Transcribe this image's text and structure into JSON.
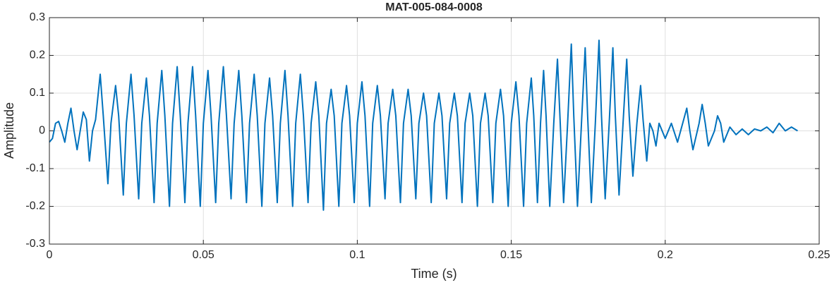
{
  "chart_data": {
    "type": "line",
    "title": "MAT-005-084-0008",
    "x_label": "Time (s)",
    "y_label": "Amplitude",
    "xlim": [
      0,
      0.25
    ],
    "xticks": [
      0,
      0.05,
      0.1,
      0.15,
      0.2,
      0.25
    ],
    "ylim": [
      -0.3,
      0.3
    ],
    "yticks": [
      -0.3,
      -0.2,
      -0.1,
      0,
      0.1,
      0.2,
      0.3
    ],
    "grid": true,
    "color": "#0072bd",
    "x": [
      0,
      0.001,
      0.002,
      0.003,
      0.004,
      0.005,
      0.006,
      0.007,
      0.008,
      0.009,
      0.01,
      0.011,
      0.012,
      0.013,
      0.014,
      0.015,
      0.0165,
      0.0175,
      0.019,
      0.02,
      0.0215,
      0.0225,
      0.024,
      0.025,
      0.0265,
      0.0275,
      0.029,
      0.03,
      0.0315,
      0.0325,
      0.034,
      0.035,
      0.0365,
      0.0375,
      0.039,
      0.04,
      0.0415,
      0.0425,
      0.044,
      0.045,
      0.0465,
      0.0475,
      0.049,
      0.05,
      0.0515,
      0.0525,
      0.054,
      0.055,
      0.0565,
      0.0575,
      0.059,
      0.06,
      0.0615,
      0.0625,
      0.064,
      0.065,
      0.0665,
      0.0675,
      0.069,
      0.07,
      0.0715,
      0.0725,
      0.074,
      0.075,
      0.0765,
      0.0775,
      0.079,
      0.08,
      0.0815,
      0.0825,
      0.084,
      0.085,
      0.0865,
      0.0875,
      0.089,
      0.09,
      0.0915,
      0.0925,
      0.094,
      0.095,
      0.0965,
      0.0975,
      0.099,
      0.1,
      0.1015,
      0.1025,
      0.104,
      0.105,
      0.1065,
      0.1075,
      0.109,
      0.11,
      0.1115,
      0.1125,
      0.114,
      0.115,
      0.1165,
      0.1175,
      0.119,
      0.12,
      0.1215,
      0.1225,
      0.124,
      0.125,
      0.1265,
      0.1275,
      0.129,
      0.13,
      0.1315,
      0.1325,
      0.134,
      0.135,
      0.1365,
      0.1375,
      0.139,
      0.14,
      0.1415,
      0.1425,
      0.144,
      0.145,
      0.1465,
      0.1475,
      0.149,
      0.15,
      0.1515,
      0.1525,
      0.154,
      0.155,
      0.1565,
      0.1573,
      0.1585,
      0.1595,
      0.1605,
      0.1613,
      0.1625,
      0.1638,
      0.165,
      0.1658,
      0.167,
      0.1683,
      0.1695,
      0.1703,
      0.1715,
      0.1728,
      0.174,
      0.1748,
      0.176,
      0.1773,
      0.1785,
      0.1793,
      0.1805,
      0.1818,
      0.183,
      0.1838,
      0.185,
      0.1863,
      0.1875,
      0.1883,
      0.1895,
      0.1908,
      0.192,
      0.1928,
      0.194,
      0.195,
      0.196,
      0.197,
      0.198,
      0.199,
      0.2,
      0.202,
      0.204,
      0.206,
      0.207,
      0.208,
      0.209,
      0.211,
      0.212,
      0.213,
      0.214,
      0.216,
      0.217,
      0.218,
      0.219,
      0.221,
      0.223,
      0.225,
      0.227,
      0.229,
      0.231,
      0.233,
      0.235,
      0.237,
      0.239,
      0.241,
      0.243
    ],
    "values": [
      -0.03,
      -0.02,
      0.02,
      0.025,
      0,
      -0.03,
      0.02,
      0.06,
      0,
      -0.05,
      0,
      0.05,
      0.03,
      -0.08,
      0,
      0.03,
      0.15,
      0.04,
      -0.14,
      0.02,
      0.12,
      0.04,
      -0.17,
      0.02,
      0.15,
      0.04,
      -0.18,
      0.02,
      0.14,
      0.04,
      -0.19,
      0.02,
      0.16,
      0.04,
      -0.2,
      0.02,
      0.17,
      0.04,
      -0.19,
      0.02,
      0.17,
      0.04,
      -0.2,
      0.02,
      0.16,
      0.04,
      -0.19,
      0.02,
      0.17,
      0.04,
      -0.18,
      0.02,
      0.16,
      0.04,
      -0.19,
      0.02,
      0.15,
      0.04,
      -0.2,
      0.02,
      0.14,
      0.04,
      -0.19,
      0.02,
      0.16,
      0.04,
      -0.2,
      0.02,
      0.15,
      0.04,
      -0.19,
      0.02,
      0.13,
      0.04,
      -0.21,
      0.02,
      0.11,
      0.04,
      -0.2,
      0.02,
      0.12,
      0.04,
      -0.19,
      0.02,
      0.13,
      0.04,
      -0.2,
      0.02,
      0.12,
      0.04,
      -0.18,
      0.02,
      0.11,
      0.04,
      -0.19,
      0.02,
      0.11,
      0.04,
      -0.18,
      0.02,
      0.1,
      0.04,
      -0.19,
      0.02,
      0.1,
      0.04,
      -0.18,
      0.02,
      0.1,
      0.04,
      -0.19,
      0.02,
      0.1,
      0.04,
      -0.2,
      0.02,
      0.1,
      0.04,
      -0.19,
      0.02,
      0.11,
      0.04,
      -0.2,
      0.02,
      0.13,
      0.04,
      -0.2,
      0.02,
      0.14,
      0.04,
      -0.19,
      0.02,
      0.16,
      0.04,
      -0.2,
      0.02,
      0.19,
      0.04,
      -0.19,
      0.02,
      0.23,
      0.04,
      -0.2,
      0.02,
      0.22,
      0.04,
      -0.19,
      0.02,
      0.24,
      0.04,
      -0.18,
      0.02,
      0.22,
      0.04,
      -0.17,
      0.02,
      0.19,
      0.04,
      -0.12,
      0.02,
      0.12,
      0.03,
      -0.08,
      0.02,
      0,
      -0.04,
      0.02,
      0,
      -0.02,
      0.02,
      -0.03,
      0.03,
      0.06,
      0,
      -0.05,
      0.02,
      0.07,
      0.02,
      -0.04,
      0,
      0.04,
      0.02,
      -0.03,
      0.01,
      -0.01,
      0.005,
      -0.01,
      0.005,
      0,
      0.01,
      -0.005,
      0.02,
      0,
      0.01,
      0
    ]
  }
}
